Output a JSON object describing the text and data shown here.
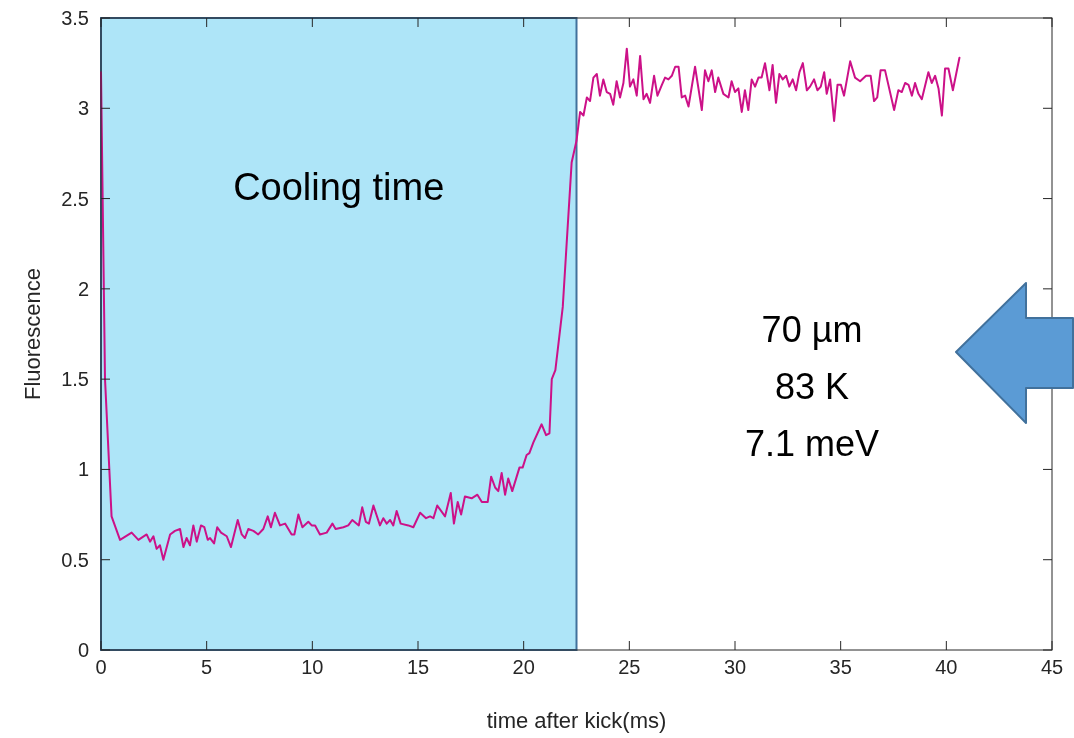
{
  "chart_data": {
    "type": "line",
    "xlabel": "time after kick(ms)",
    "ylabel": "Fluorescence",
    "xlim": [
      0,
      45
    ],
    "xticks": [
      0,
      5,
      10,
      15,
      20,
      25,
      30,
      35,
      40,
      45
    ],
    "ylim": [
      0,
      3.5
    ],
    "yticks": [
      0,
      0.5,
      1,
      1.5,
      2,
      2.5,
      3,
      3.5
    ],
    "grid": false,
    "bands": [
      {
        "axis": "x",
        "from": 0,
        "to": 22.5,
        "label": "Cooling time",
        "color": "#aee5f8"
      }
    ],
    "annotations": [
      "70 µm",
      "83 K",
      "7.1 meV"
    ],
    "series": [
      {
        "color": "#cc1188",
        "x": [
          0,
          0.19,
          0.5,
          0.9,
          1.45,
          1.77,
          2.16,
          2.32,
          2.48,
          2.63,
          2.79,
          2.95,
          3.27,
          3.5,
          3.74,
          3.9,
          4.05,
          4.21,
          4.37,
          4.53,
          4.73,
          4.89,
          5.05,
          5.16,
          5.35,
          5.5,
          5.68,
          5.95,
          6.15,
          6.47,
          6.66,
          6.81,
          6.97,
          7.21,
          7.44,
          7.68,
          7.89,
          8.04,
          8.23,
          8.47,
          8.71,
          9.02,
          9.15,
          9.34,
          9.53,
          9.81,
          9.97,
          10.13,
          10.36,
          10.68,
          10.95,
          11.1,
          11.47,
          11.7,
          11.89,
          12.2,
          12.36,
          12.53,
          12.68,
          12.89,
          13.2,
          13.36,
          13.52,
          13.68,
          13.83,
          13.99,
          14.18,
          14.54,
          14.78,
          15.1,
          15.38,
          15.57,
          15.73,
          15.91,
          16.28,
          16.55,
          16.7,
          16.88,
          17.04,
          17.22,
          17.54,
          17.81,
          18.02,
          18.3,
          18.46,
          18.65,
          18.8,
          18.96,
          19.12,
          19.27,
          19.46,
          19.8,
          19.95,
          20.14,
          20.27,
          20.46,
          20.85,
          21.06,
          21.22,
          21.33,
          21.5,
          21.85,
          22.27,
          22.5,
          22.67,
          22.83,
          22.99,
          23.14,
          23.3,
          23.46,
          23.61,
          23.77,
          23.93,
          24.09,
          24.24,
          24.4,
          24.56,
          24.72,
          24.88,
          25.03,
          25.19,
          25.35,
          25.51,
          25.67,
          25.82,
          25.98,
          26.17,
          26.33,
          26.54,
          26.69,
          26.85,
          27.01,
          27.17,
          27.33,
          27.48,
          27.64,
          27.8,
          28.11,
          28.43,
          28.58,
          28.74,
          28.9,
          29.06,
          29.21,
          29.45,
          29.69,
          29.84,
          30.0,
          30.16,
          30.32,
          30.47,
          30.63,
          30.79,
          30.95,
          31.11,
          31.26,
          31.42,
          31.63,
          31.78,
          31.94,
          32.1,
          32.26,
          32.42,
          32.57,
          32.73,
          32.89,
          33.05,
          33.21,
          33.4,
          33.55,
          33.74,
          33.9,
          34.06,
          34.22,
          34.34,
          34.5,
          34.69,
          34.85,
          35.01,
          35.16,
          35.45,
          35.68,
          35.92,
          36.2,
          36.42,
          36.58,
          36.73,
          36.89,
          37.1,
          37.53,
          37.73,
          37.89,
          38.05,
          38.21,
          38.37,
          38.52,
          38.68,
          38.84,
          39.15,
          39.31,
          39.47,
          39.63,
          39.79,
          39.94,
          40.1,
          40.31,
          40.62
        ],
        "values": [
          3.2,
          1.5,
          0.74,
          0.61,
          0.65,
          0.61,
          0.64,
          0.6,
          0.63,
          0.56,
          0.58,
          0.5,
          0.64,
          0.66,
          0.67,
          0.57,
          0.62,
          0.58,
          0.69,
          0.6,
          0.69,
          0.68,
          0.61,
          0.62,
          0.59,
          0.68,
          0.65,
          0.63,
          0.57,
          0.72,
          0.64,
          0.62,
          0.67,
          0.66,
          0.64,
          0.67,
          0.74,
          0.68,
          0.76,
          0.69,
          0.7,
          0.64,
          0.64,
          0.75,
          0.68,
          0.71,
          0.69,
          0.69,
          0.64,
          0.65,
          0.7,
          0.67,
          0.68,
          0.69,
          0.72,
          0.69,
          0.79,
          0.71,
          0.7,
          0.8,
          0.69,
          0.73,
          0.7,
          0.72,
          0.69,
          0.77,
          0.7,
          0.69,
          0.68,
          0.76,
          0.73,
          0.74,
          0.73,
          0.8,
          0.74,
          0.87,
          0.7,
          0.82,
          0.75,
          0.85,
          0.84,
          0.86,
          0.82,
          0.82,
          0.96,
          0.9,
          0.88,
          0.98,
          0.86,
          0.95,
          0.88,
          1.01,
          1.01,
          1.08,
          1.09,
          1.15,
          1.25,
          1.19,
          1.2,
          1.5,
          1.55,
          1.9,
          2.7,
          2.82,
          2.98,
          2.96,
          3.06,
          3.04,
          3.17,
          3.19,
          3.07,
          3.16,
          3.09,
          3.08,
          3.02,
          3.15,
          3.06,
          3.14,
          3.33,
          3.12,
          3.16,
          3.07,
          3.29,
          3.05,
          3.08,
          3.03,
          3.18,
          3.07,
          3.13,
          3.17,
          3.16,
          3.18,
          3.23,
          3.23,
          3.06,
          3.07,
          3.01,
          3.23,
          2.99,
          3.21,
          3.15,
          3.21,
          3.09,
          3.17,
          3.08,
          3.06,
          3.15,
          3.09,
          3.11,
          2.98,
          3.1,
          2.99,
          3.16,
          3.12,
          3.17,
          3.17,
          3.25,
          3.1,
          3.24,
          3.03,
          3.19,
          3.16,
          3.18,
          3.12,
          3.16,
          3.1,
          3.2,
          3.25,
          3.1,
          3.12,
          3.16,
          3.1,
          3.12,
          3.2,
          3.08,
          3.16,
          2.93,
          3.13,
          3.13,
          3.07,
          3.26,
          3.17,
          3.15,
          3.18,
          3.18,
          3.04,
          3.06,
          3.21,
          3.21,
          2.99,
          3.1,
          3.09,
          3.14,
          3.13,
          3.07,
          3.14,
          3.08,
          3.05,
          3.2,
          3.14,
          3.18,
          3.11,
          2.96,
          3.22,
          3.22,
          3.1,
          3.28
        ]
      }
    ]
  }
}
